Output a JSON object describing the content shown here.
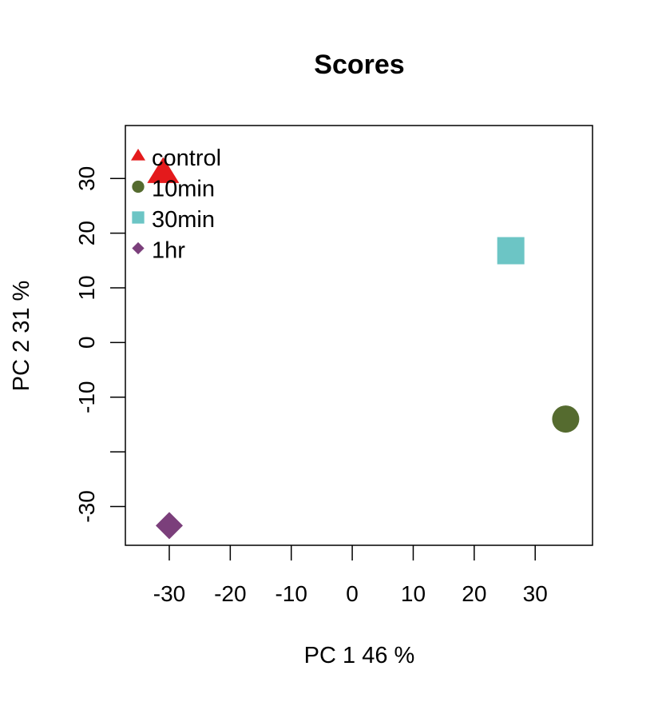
{
  "chart_data": {
    "type": "scatter",
    "title": "Scores",
    "xlabel": "PC 1 46 %",
    "ylabel": "PC 2 31 %",
    "xlim": [
      -37.2,
      39.4
    ],
    "ylim": [
      -37.1,
      39.7
    ],
    "x_ticks": [
      -30,
      -20,
      -10,
      0,
      10,
      20,
      30
    ],
    "x_tick_labels": [
      "-30",
      "-20",
      "-10",
      "0",
      "10",
      "20",
      "30"
    ],
    "y_ticks": [
      -30,
      -20,
      -10,
      0,
      10,
      20,
      30
    ],
    "y_tick_labels": [
      "-30",
      "",
      "-10",
      "0",
      "10",
      "20",
      "30"
    ],
    "grid": false,
    "legend_position": "top-left",
    "series": [
      {
        "name": "control",
        "x": [
          -31.0
        ],
        "y": [
          31.0
        ],
        "color": "#E41A1C",
        "marker": "triangle"
      },
      {
        "name": "10min",
        "x": [
          35.0
        ],
        "y": [
          -14.0
        ],
        "color": "#556B2F",
        "marker": "circle"
      },
      {
        "name": "30min",
        "x": [
          26.0
        ],
        "y": [
          16.8
        ],
        "color": "#6CC5C5",
        "marker": "square"
      },
      {
        "name": "1hr",
        "x": [
          -30.0
        ],
        "y": [
          -33.5
        ],
        "color": "#7B3F7B",
        "marker": "diamond"
      }
    ]
  }
}
